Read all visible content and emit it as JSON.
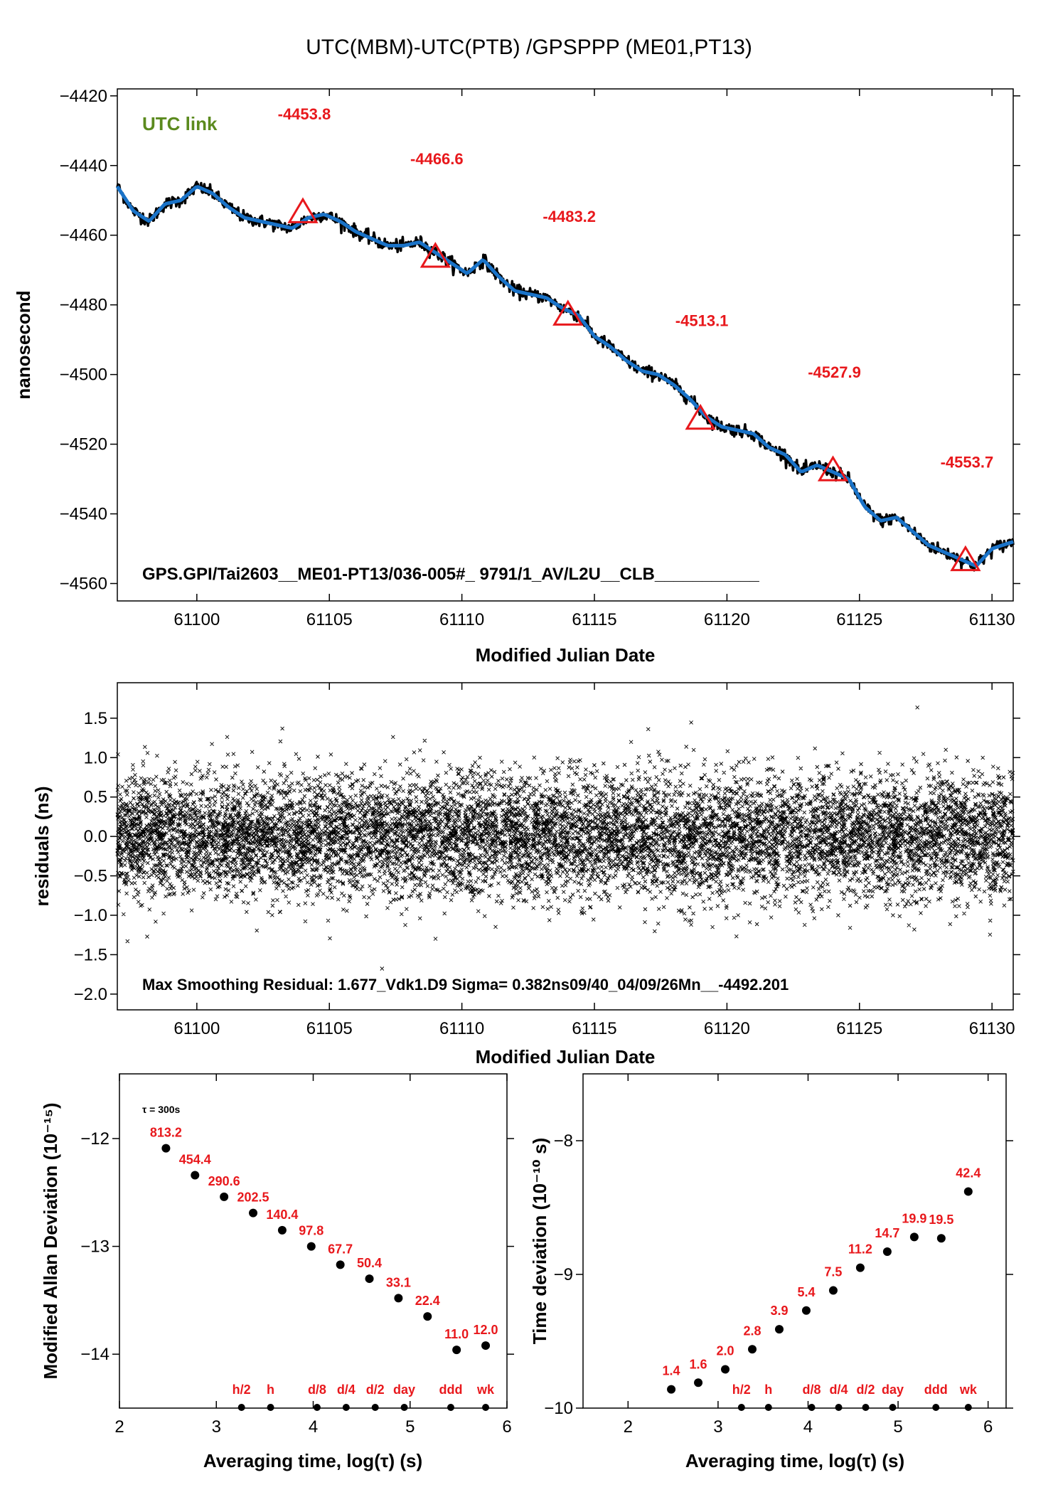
{
  "title": "UTC(MBM)-UTC(PTB)  /GPSPPP  (ME01,PT13)",
  "colors": {
    "trace": "#1a73c8",
    "noise": "#000000",
    "marker": "#e8181c",
    "annot": "#e8181c",
    "legend": "#5b8a1e"
  },
  "chart_data": [
    {
      "type": "line",
      "panel": "time-series",
      "legend_label": "UTC link",
      "xlabel": "Modified Julian Date",
      "ylabel": "nanosecond",
      "xlim": [
        61097,
        61130.8
      ],
      "ylim": [
        -4565,
        -4418
      ],
      "xticks": [
        61100,
        61105,
        61110,
        61115,
        61120,
        61125,
        61130
      ],
      "yticks": [
        -4420,
        -4440,
        -4460,
        -4480,
        -4500,
        -4520,
        -4540,
        -4560
      ],
      "xtick_labels": [
        "61100",
        "61105",
        "61110",
        "61115",
        "61120",
        "61125",
        "61130"
      ],
      "ytick_labels": [
        "−4420",
        "−4440",
        "−4460",
        "−4480",
        "−4500",
        "−4520",
        "−4540",
        "−4560"
      ],
      "series": [
        {
          "x": [
            61097,
            61097.6,
            61098.2,
            61098.8,
            61099.4,
            61100.0,
            61100.6,
            61101.2,
            61101.8,
            61102.4,
            61103.0,
            61103.6,
            61104.2,
            61104.8,
            61105.4,
            61106.0,
            61106.6,
            61107.2,
            61107.8,
            61108.4,
            61109.0,
            61109.6,
            61110.2,
            61110.8,
            61111.4,
            61112.0,
            61112.6,
            61113.2,
            61113.8,
            61114.4,
            61115.0,
            61115.6,
            61116.2,
            61116.8,
            61117.4,
            61118.0,
            61118.6,
            61119.2,
            61119.8,
            61120.4,
            61121.0,
            61121.6,
            61122.2,
            61122.8,
            61123.4,
            61124.0,
            61124.6,
            61125.2,
            61125.8,
            61126.4,
            61127.0,
            61127.6,
            61128.2,
            61128.8,
            61129.4,
            61130.0,
            61130.8
          ],
          "y": [
            -4446,
            -4453,
            -4456,
            -4451,
            -4450,
            -4446,
            -4448,
            -4452,
            -4455,
            -4456,
            -4457,
            -4458,
            -4455,
            -4454,
            -4456,
            -4459,
            -4461,
            -4463,
            -4463,
            -4462,
            -4465,
            -4468,
            -4471,
            -4467,
            -4472,
            -4476,
            -4477,
            -4478,
            -4481,
            -4483,
            -4489,
            -4492,
            -4496,
            -4499,
            -4500,
            -4503,
            -4507,
            -4512,
            -4515,
            -4516,
            -4517,
            -4521,
            -4523,
            -4528,
            -4526,
            -4528,
            -4530,
            -4538,
            -4542,
            -4541,
            -4545,
            -4549,
            -4551,
            -4553,
            -4555,
            -4550,
            -4548
          ]
        }
      ],
      "markers": [
        {
          "x": 61104,
          "y": -4453.8,
          "label": "-4453.8"
        },
        {
          "x": 61109,
          "y": -4466.6,
          "label": "-4466.6"
        },
        {
          "x": 61114,
          "y": -4483.2,
          "label": "-4483.2"
        },
        {
          "x": 61119,
          "y": -4513.1,
          "label": "-4513.1"
        },
        {
          "x": 61124,
          "y": -4527.9,
          "label": "-4527.9"
        },
        {
          "x": 61129,
          "y": -4553.7,
          "label": "-4553.7"
        }
      ],
      "note": "GPS.GPI/Tai2603__ME01-PT13/036-005#_  9791/1_AV/L2U__CLB___________"
    },
    {
      "type": "scatter",
      "panel": "residuals",
      "xlabel": "Modified Julian Date",
      "ylabel": "residuals (ns)",
      "xlim": [
        61097,
        61130.8
      ],
      "ylim": [
        -2.2,
        1.95
      ],
      "xticks": [
        61100,
        61105,
        61110,
        61115,
        61120,
        61125,
        61130
      ],
      "yticks": [
        1.5,
        1.0,
        0.5,
        0.0,
        -0.5,
        -1.0,
        -1.5,
        -2.0
      ],
      "xtick_labels": [
        "61100",
        "61105",
        "61110",
        "61115",
        "61120",
        "61125",
        "61130"
      ],
      "ytick_labels": [
        "1.5",
        "1.0",
        "0.5",
        "0.0",
        "−0.5",
        "−1.0",
        "−1.5",
        "−2.0"
      ],
      "sigma_ns": 0.382,
      "max_residual": 1.677,
      "note": "Max Smoothing Residual: 1.677_Vdk1.D9  Sigma= 0.382ns09/40_04/09/26Mn__-4492.201"
    },
    {
      "type": "scatter",
      "panel": "modified-allan-deviation",
      "xlabel": "Averaging time, log(τ) (s)",
      "ylabel": "Modified Allan Deviation (10⁻¹⁵)",
      "tau_note": "τ = 300s",
      "xlim": [
        2,
        6
      ],
      "ylim": [
        -14.5,
        -11.4
      ],
      "xticks": [
        2,
        3,
        4,
        5,
        6
      ],
      "yticks": [
        -12,
        -13,
        -14
      ],
      "xtick_labels": [
        "2",
        "3",
        "4",
        "5",
        "6"
      ],
      "ytick_labels": [
        "−12",
        "−13",
        "−14"
      ],
      "x": [
        2.48,
        2.78,
        3.08,
        3.38,
        3.68,
        3.98,
        4.28,
        4.58,
        4.88,
        5.18,
        5.48,
        5.78
      ],
      "y": [
        -12.09,
        -12.34,
        -12.54,
        -12.69,
        -12.85,
        -13.0,
        -13.17,
        -13.3,
        -13.48,
        -13.65,
        -13.96,
        -13.92
      ],
      "labels": [
        "813.2",
        "454.4",
        "290.6",
        "202.5",
        "140.4",
        "97.8",
        "67.7",
        "50.4",
        "33.1",
        "22.4",
        "11.0",
        "12.0"
      ],
      "interval_markers": [
        {
          "x": 3.26,
          "label": "h/2"
        },
        {
          "x": 3.56,
          "label": "h"
        },
        {
          "x": 4.04,
          "label": "d/8"
        },
        {
          "x": 4.34,
          "label": "d/4"
        },
        {
          "x": 4.64,
          "label": "d/2"
        },
        {
          "x": 4.94,
          "label": "day"
        },
        {
          "x": 5.42,
          "label": "ddd"
        },
        {
          "x": 5.78,
          "label": "wk"
        }
      ]
    },
    {
      "type": "scatter",
      "panel": "time-deviation",
      "xlabel": "Averaging time, log(τ) (s)",
      "ylabel": "Time deviation (10⁻¹⁰ s)",
      "xlim": [
        1.5,
        6.2
      ],
      "ylim": [
        -10,
        -7.5
      ],
      "xticks": [
        2,
        3,
        4,
        5,
        6
      ],
      "yticks": [
        -8,
        -9,
        -10
      ],
      "xtick_labels": [
        "2",
        "3",
        "4",
        "5",
        "6"
      ],
      "ytick_labels": [
        "−8",
        "−9",
        "−10"
      ],
      "x": [
        2.48,
        2.78,
        3.08,
        3.38,
        3.68,
        3.98,
        4.28,
        4.58,
        4.88,
        5.18,
        5.48,
        5.78
      ],
      "y": [
        -9.86,
        -9.81,
        -9.71,
        -9.56,
        -9.41,
        -9.27,
        -9.12,
        -8.95,
        -8.83,
        -8.72,
        -8.73,
        -8.38
      ],
      "labels": [
        "1.4",
        "1.6",
        "2.0",
        "2.8",
        "3.9",
        "5.4",
        "7.5",
        "11.2",
        "14.7",
        "19.9",
        "19.5",
        "42.4"
      ],
      "interval_markers": [
        {
          "x": 3.26,
          "label": "h/2"
        },
        {
          "x": 3.56,
          "label": "h"
        },
        {
          "x": 4.04,
          "label": "d/8"
        },
        {
          "x": 4.34,
          "label": "d/4"
        },
        {
          "x": 4.64,
          "label": "d/2"
        },
        {
          "x": 4.94,
          "label": "day"
        },
        {
          "x": 5.42,
          "label": "ddd"
        },
        {
          "x": 5.78,
          "label": "wk"
        }
      ]
    }
  ]
}
